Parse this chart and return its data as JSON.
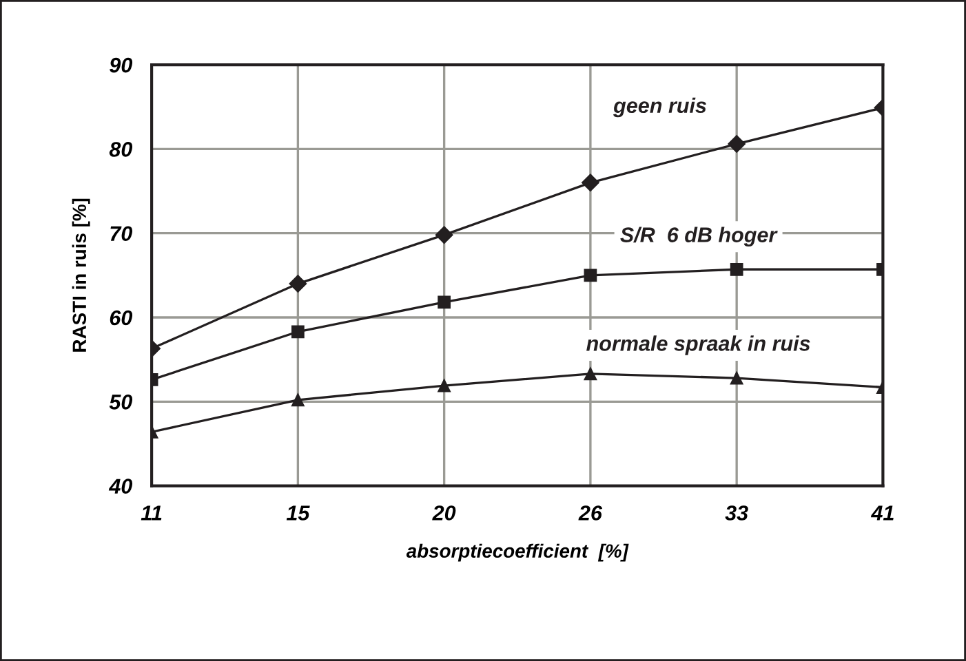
{
  "chart_data": {
    "type": "line",
    "xlabel": "absorptiecoefficient  [%]",
    "ylabel": "RASTI in ruis [%]",
    "categories": [
      "11",
      "15",
      "20",
      "26",
      "33",
      "41"
    ],
    "series": [
      {
        "name": "geen ruis",
        "color": "#231f20",
        "marker": "diamond",
        "values": [
          56.3,
          64.0,
          69.8,
          76.0,
          80.6,
          84.9
        ]
      },
      {
        "name": "S/R  6 dB hoger",
        "color": "#231f20",
        "marker": "square",
        "values": [
          52.6,
          58.3,
          61.8,
          65.0,
          65.7,
          65.7
        ]
      },
      {
        "name": "normale spraak in ruis",
        "color": "#231f20",
        "marker": "triangle",
        "values": [
          46.4,
          50.2,
          51.9,
          53.3,
          52.8,
          51.7
        ]
      }
    ],
    "ylim": [
      40,
      90
    ],
    "yticks": [
      40,
      50,
      60,
      70,
      80,
      90
    ],
    "grid": true,
    "legend": false,
    "line_style": "solid"
  }
}
